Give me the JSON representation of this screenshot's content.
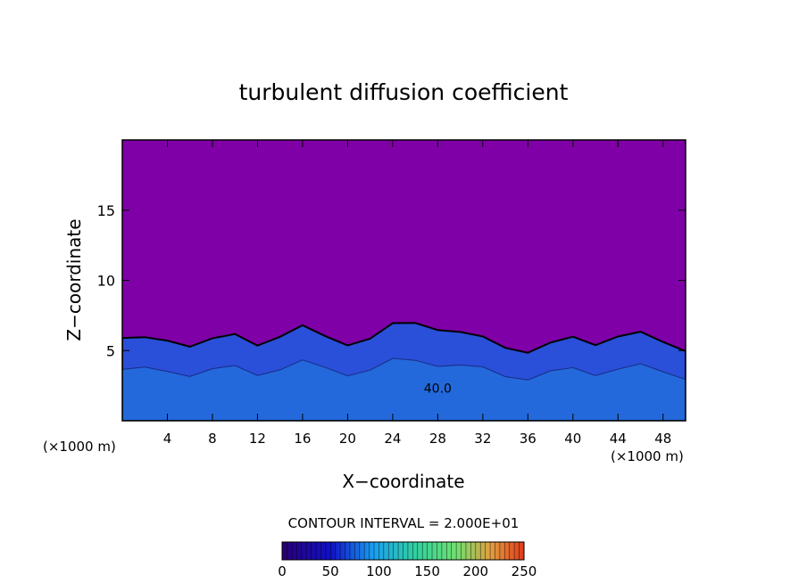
{
  "chart_data": {
    "type": "heatmap",
    "title": "turbulent diffusion coefficient",
    "xlabel": "X−coordinate",
    "ylabel": "Z−coordinate",
    "x_units_label": "(×1000 m)",
    "z_units_label": "(×1000 m)",
    "xlim": [
      0,
      50
    ],
    "ylim": [
      0,
      20
    ],
    "x_ticks": [
      4,
      8,
      12,
      16,
      20,
      24,
      28,
      32,
      36,
      40,
      44,
      48
    ],
    "y_ticks": [
      5,
      10,
      15
    ],
    "contour_interval_text": "CONTOUR INTERVAL = 2.000E+01",
    "contour_label": "40.0",
    "colorbar": {
      "min": 0,
      "max": 250,
      "ticks": [
        0,
        50,
        100,
        150,
        200,
        250
      ]
    },
    "background_value": 0,
    "background_color": "#7f00a7",
    "turbulent_layer_top_profile": {
      "x": [
        0,
        2,
        4,
        6,
        8,
        10,
        12,
        14,
        16,
        18,
        20,
        22,
        24,
        26,
        28,
        30,
        32,
        34,
        36,
        38,
        40,
        42,
        44,
        46,
        48,
        50
      ],
      "z": [
        5.9,
        5.6,
        5.8,
        5.6,
        5.7,
        5.9,
        5.6,
        6.2,
        6.5,
        5.9,
        5.7,
        5.9,
        6.6,
        7.0,
        6.8,
        6.2,
        5.7,
        5.4,
        5.1,
        5.3,
        5.8,
        5.7,
        6.1,
        6.0,
        5.6,
        5.3
      ]
    }
  }
}
